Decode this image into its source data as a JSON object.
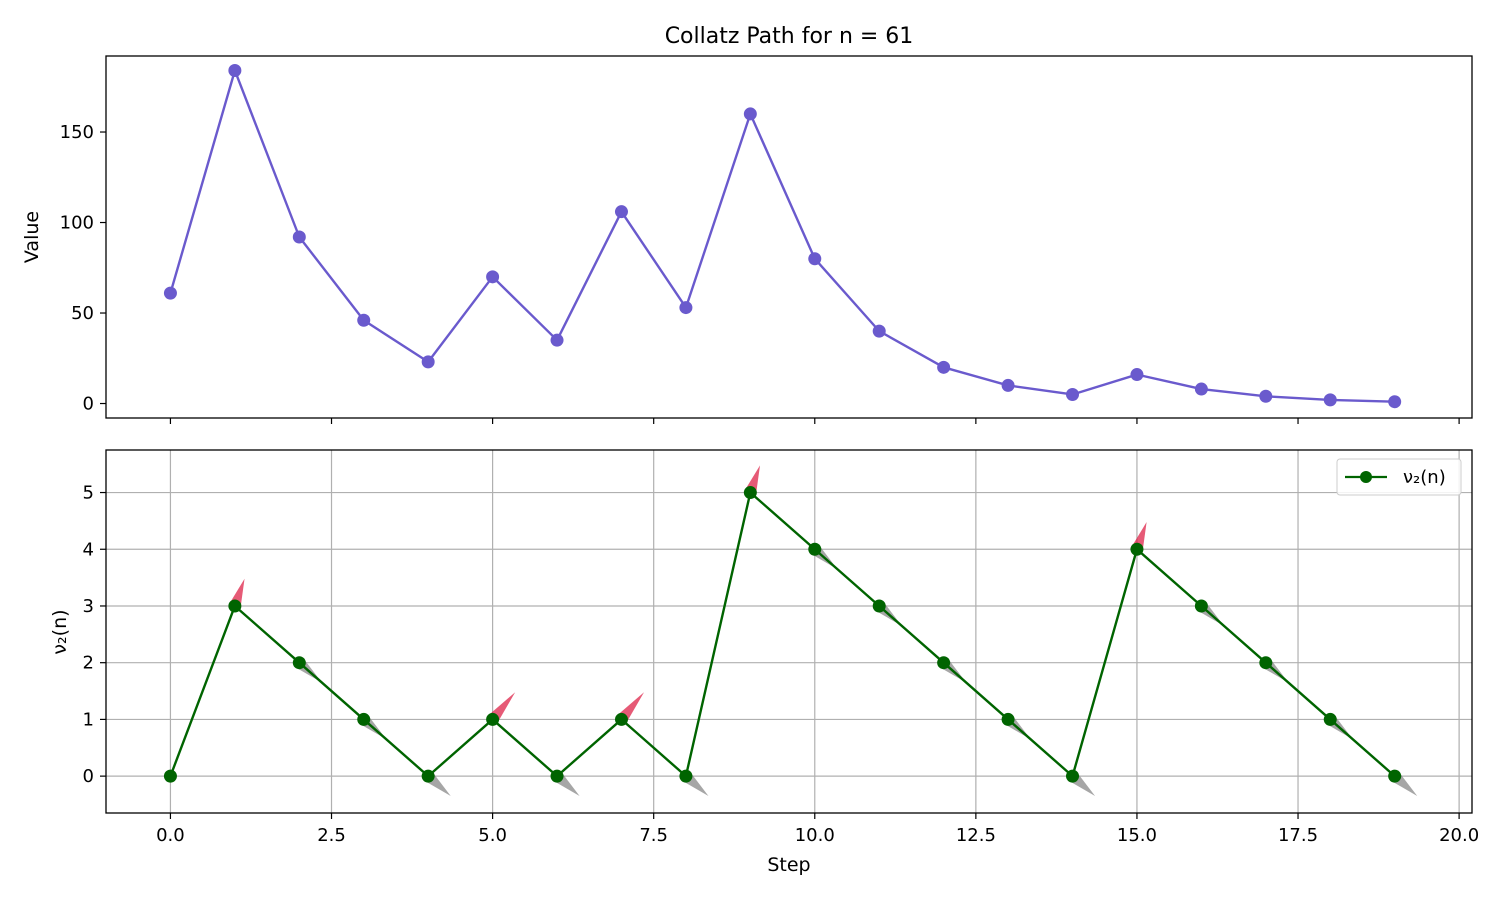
{
  "figure": {
    "title": "Collatz Path for n = 61"
  },
  "chart_data": [
    {
      "type": "line",
      "ylabel": "Value",
      "xlim": [
        -1,
        20.2
      ],
      "ylim": [
        -8,
        192
      ],
      "yticks": [
        0,
        50,
        100,
        150
      ],
      "xticks": [
        0,
        2.5,
        5,
        7.5,
        10,
        12.5,
        15,
        17.5,
        20
      ],
      "grid": false,
      "x": [
        0,
        1,
        2,
        3,
        4,
        5,
        6,
        7,
        8,
        9,
        10,
        11,
        12,
        13,
        14,
        15,
        16,
        17,
        18,
        19
      ],
      "values": [
        61,
        184,
        92,
        46,
        23,
        70,
        35,
        106,
        53,
        160,
        80,
        40,
        20,
        10,
        5,
        16,
        8,
        4,
        2,
        1
      ],
      "color": "#6a5acd"
    },
    {
      "type": "line",
      "ylabel": "ν₂(n)",
      "xlabel": "Step",
      "xlim": [
        -1,
        20.2
      ],
      "ylim": [
        -0.65,
        5.75
      ],
      "yticks": [
        0,
        1,
        2,
        3,
        4,
        5
      ],
      "xticks": [
        0,
        2.5,
        5,
        7.5,
        10,
        12.5,
        15,
        17.5,
        20
      ],
      "xtick_labels": [
        "0.0",
        "2.5",
        "5.0",
        "7.5",
        "10.0",
        "12.5",
        "15.0",
        "17.5",
        "20.0"
      ],
      "grid": true,
      "legend": "top-right",
      "series": [
        {
          "name": "ν₂(n)",
          "x": [
            0,
            1,
            2,
            3,
            4,
            5,
            6,
            7,
            8,
            9,
            10,
            11,
            12,
            13,
            14,
            15,
            16,
            17,
            18,
            19
          ],
          "values": [
            0,
            3,
            2,
            1,
            0,
            1,
            0,
            1,
            0,
            5,
            4,
            3,
            2,
            1,
            0,
            4,
            3,
            2,
            1,
            0
          ],
          "color": "#006400"
        }
      ],
      "direction_markers": {
        "up_color": "#dc143c",
        "down_color": "#808080",
        "up_steps": [
          1,
          5,
          7,
          9,
          15
        ],
        "down_steps": [
          2,
          3,
          4,
          6,
          8,
          10,
          11,
          12,
          13,
          14,
          16,
          17,
          18,
          19
        ]
      }
    }
  ]
}
